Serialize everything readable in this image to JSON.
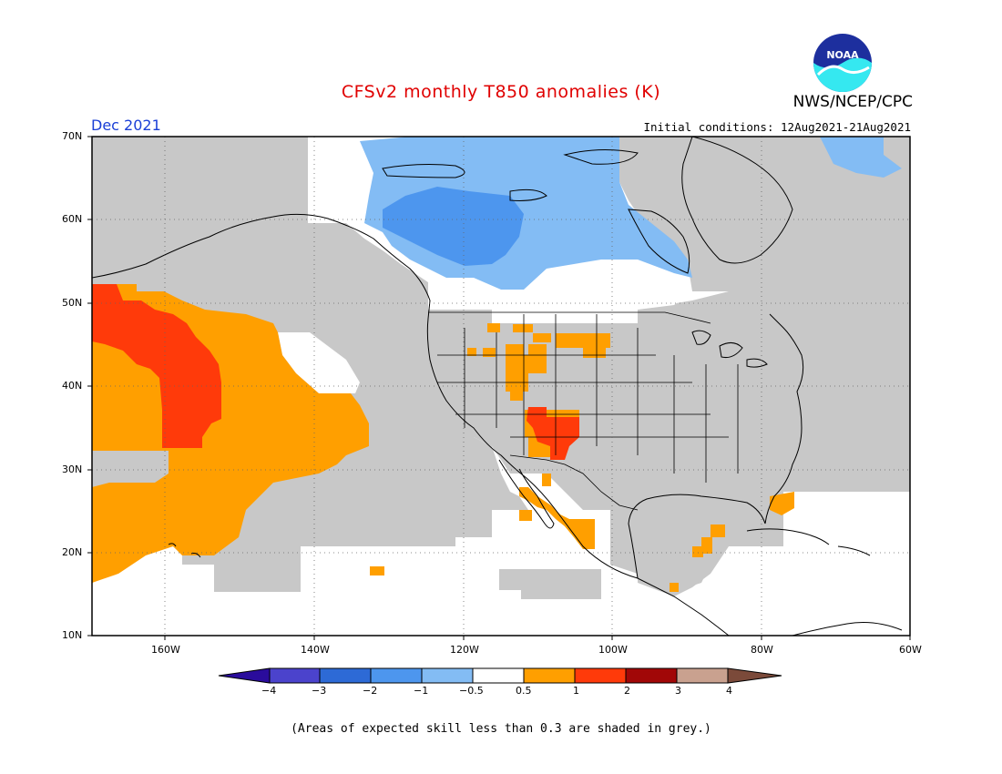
{
  "title": "CFSv2 monthly T850 anomalies (K)",
  "agency": "NWS/NCEP/CPC",
  "logo_text": "NOAA",
  "valid_month": "Dec 2021",
  "initial_conditions": "Initial conditions: 12Aug2021-21Aug2021",
  "footnote": "(Areas of expected skill less than 0.3 are shaded in grey.)",
  "map": {
    "lat_labels": [
      "70N",
      "60N",
      "50N",
      "40N",
      "30N",
      "20N",
      "10N"
    ],
    "lon_labels": [
      "160W",
      "140W",
      "120W",
      "100W",
      "80W",
      "60W"
    ],
    "low_skill_color": "#c8c8c8",
    "grid": true
  },
  "colorbar": {
    "labels": [
      "−4",
      "−3",
      "−2",
      "−1",
      "−0.5",
      "0.5",
      "1",
      "2",
      "3",
      "4"
    ],
    "colors": [
      "#2a0c9c",
      "#4b43cc",
      "#2d6ad6",
      "#4d96ee",
      "#83bcf4",
      "#ffffff",
      "#ff9f00",
      "#ff3a0a",
      "#a10707",
      "#c9a18f",
      "#7b4a3a"
    ]
  },
  "colors": {
    "title": "#e00000",
    "month": "#1a3fd6",
    "anomaly_plus_05_1": "#ff9f00",
    "anomaly_plus_1_2": "#ff3a0a",
    "anomaly_minus_1_05": "#83bcf4",
    "anomaly_minus_2_1": "#4d96ee",
    "grey": "#c8c8c8"
  }
}
